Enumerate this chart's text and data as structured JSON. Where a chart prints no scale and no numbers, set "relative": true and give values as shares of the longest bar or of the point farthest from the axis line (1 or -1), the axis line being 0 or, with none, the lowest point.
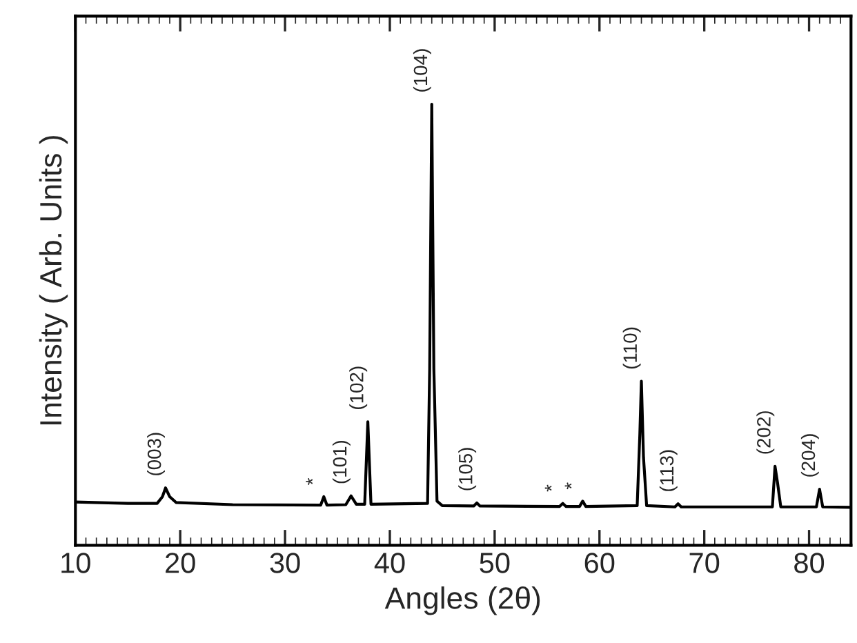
{
  "chart_data": {
    "type": "line",
    "relative": true,
    "xlabel": "Angles (2θ)",
    "ylabel": "Intensity ( Arb. Units )",
    "xlim": [
      10,
      84
    ],
    "xticks": [
      10,
      20,
      30,
      40,
      50,
      60,
      70,
      80
    ],
    "grid": false,
    "legend": false,
    "marker": "none",
    "line_style": "solid",
    "series": [
      {
        "color": "#000000",
        "x": [
          10,
          15,
          17.8,
          18.3,
          18.6,
          19.0,
          19.6,
          25,
          33.4,
          33.7,
          34.0,
          35.8,
          36.3,
          36.8,
          37.6,
          37.9,
          38.2,
          43.6,
          43.8,
          44.0,
          44.2,
          44.5,
          45,
          48.0,
          48.3,
          48.6,
          56.2,
          56.5,
          56.8,
          58.1,
          58.4,
          58.7,
          63.6,
          63.85,
          64.0,
          64.2,
          64.5,
          67.2,
          67.5,
          67.8,
          76.5,
          76.75,
          77.0,
          77.3,
          80.7,
          81.0,
          81.3,
          84
        ],
        "values": [
          0.098,
          0.095,
          0.095,
          0.11,
          0.13,
          0.11,
          0.097,
          0.092,
          0.091,
          0.11,
          0.091,
          0.092,
          0.112,
          0.093,
          0.093,
          0.28,
          0.093,
          0.095,
          0.4,
          1.0,
          0.4,
          0.1,
          0.09,
          0.089,
          0.096,
          0.089,
          0.088,
          0.095,
          0.088,
          0.088,
          0.1,
          0.088,
          0.09,
          0.25,
          0.372,
          0.2,
          0.09,
          0.087,
          0.094,
          0.087,
          0.087,
          0.179,
          0.14,
          0.087,
          0.087,
          0.127,
          0.087,
          0.086
        ]
      }
    ],
    "annotations": [
      {
        "text": "(003)",
        "x": 18.6,
        "y": 0.13
      },
      {
        "text": "*",
        "x": 33.7,
        "y": 0.11
      },
      {
        "text": "(101)",
        "x": 36.3,
        "y": 0.112
      },
      {
        "text": "(102)",
        "x": 37.9,
        "y": 0.28
      },
      {
        "text": "(104)",
        "x": 44.0,
        "y": 1.0
      },
      {
        "text": "(105)",
        "x": 48.3,
        "y": 0.096
      },
      {
        "text": "*",
        "x": 56.5,
        "y": 0.095
      },
      {
        "text": "*",
        "x": 58.4,
        "y": 0.1
      },
      {
        "text": "(110)",
        "x": 64.0,
        "y": 0.372
      },
      {
        "text": "(113)",
        "x": 67.5,
        "y": 0.094
      },
      {
        "text": "(202)",
        "x": 76.75,
        "y": 0.179
      },
      {
        "text": "(204)",
        "x": 81.0,
        "y": 0.127
      }
    ]
  }
}
